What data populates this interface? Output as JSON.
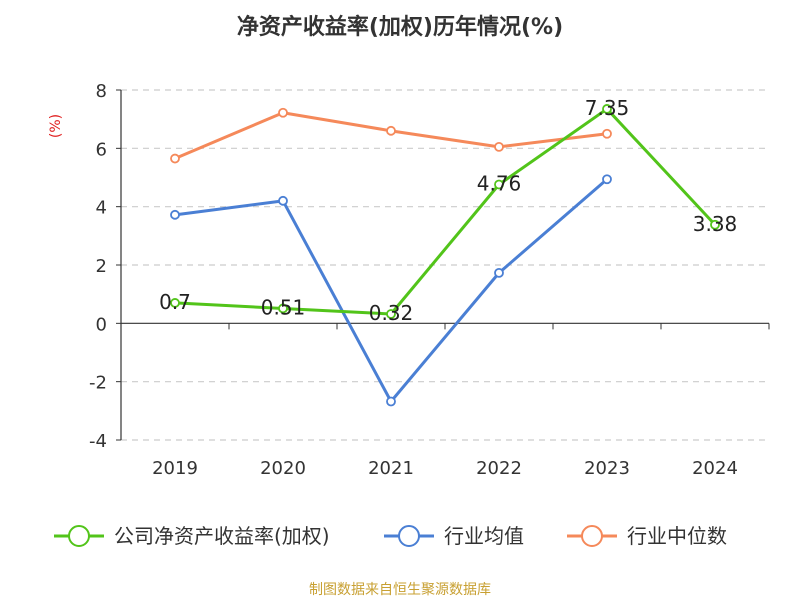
{
  "chart_data": {
    "type": "line",
    "title": "净资产收益率(加权)历年情况(%)",
    "unit_label": "(%)",
    "categories": [
      "2019",
      "2020",
      "2021",
      "2022",
      "2023",
      "2024"
    ],
    "ylim": [
      -4,
      8
    ],
    "yticks": [
      "-4",
      "-2",
      "0",
      "2",
      "4",
      "6",
      "8"
    ],
    "grid": true,
    "legend_position": "bottom",
    "series": [
      {
        "name": "公司净资产收益率(加权)",
        "color": "#52c41a",
        "values": [
          0.7,
          0.51,
          0.32,
          4.76,
          7.35,
          3.38
        ],
        "labels": [
          "0.7",
          "0.51",
          "0.32",
          "4.76",
          "7.35",
          "3.38"
        ]
      },
      {
        "name": "行业均值",
        "color": "#4a7fd4",
        "values": [
          3.72,
          4.2,
          -2.68,
          1.73,
          4.94,
          null
        ]
      },
      {
        "name": "行业中位数",
        "color": "#f5895a",
        "values": [
          5.65,
          7.22,
          6.6,
          6.05,
          6.5,
          null
        ]
      }
    ],
    "source": "制图数据来自恒生聚源数据库"
  }
}
